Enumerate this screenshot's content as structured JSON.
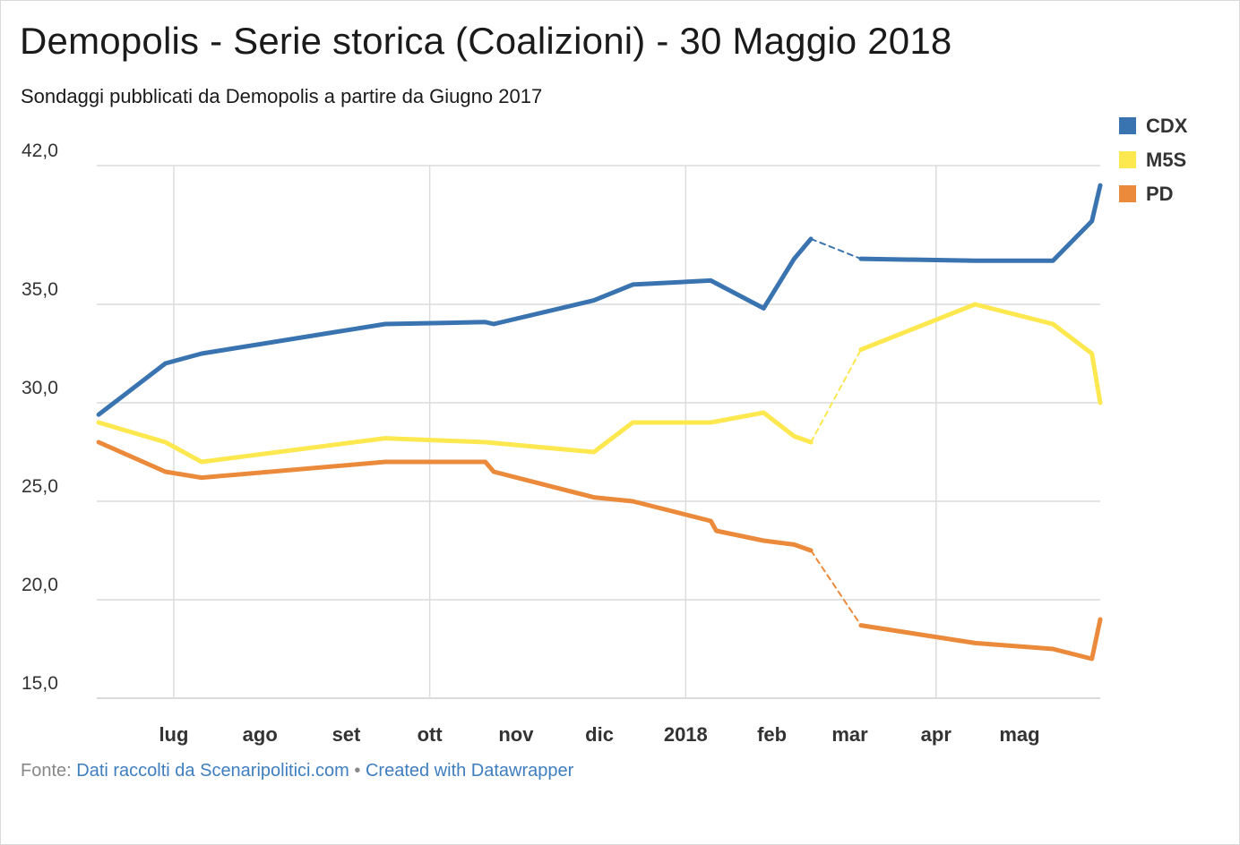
{
  "chart_data": {
    "type": "line",
    "title": "Demopolis - Serie storica (Coalizioni) - 30 Maggio 2018",
    "subtitle": "Sondaggi pubblicati da Demopolis a partire da Giugno 2017",
    "y_ticks": [
      "42,0",
      "35,0",
      "30,0",
      "25,0",
      "20,0",
      "15,0"
    ],
    "y_tick_values": [
      42,
      35,
      30,
      25,
      20,
      15
    ],
    "ylim": [
      15,
      42
    ],
    "x_ticks": [
      "lug",
      "ago",
      "set",
      "ott",
      "nov",
      "dic",
      "2018",
      "feb",
      "mar",
      "apr",
      "mag"
    ],
    "x_tick_dates": [
      "2017-07-01",
      "2017-08-01",
      "2017-09-01",
      "2017-10-01",
      "2017-11-01",
      "2017-12-01",
      "2018-01-01",
      "2018-02-01",
      "2018-03-01",
      "2018-04-01",
      "2018-05-01"
    ],
    "xlim": [
      "2017-06-03",
      "2018-05-30"
    ],
    "gap": [
      "2018-02-15",
      "2018-03-05"
    ],
    "grid": true,
    "legend_position": "top-right",
    "series": [
      {
        "name": "CDX",
        "color": "#3a74b0",
        "points": [
          [
            "2017-06-04",
            29.4
          ],
          [
            "2017-06-28",
            32.0
          ],
          [
            "2017-07-11",
            32.5
          ],
          [
            "2017-09-15",
            34.0
          ],
          [
            "2017-10-21",
            34.1
          ],
          [
            "2017-10-24",
            34.0
          ],
          [
            "2017-11-29",
            35.2
          ],
          [
            "2017-12-13",
            36.0
          ],
          [
            "2018-01-10",
            36.2
          ],
          [
            "2018-01-29",
            34.8
          ],
          [
            "2018-02-09",
            37.3
          ],
          [
            "2018-02-15",
            38.3
          ],
          [
            "2018-03-05",
            37.3
          ],
          [
            "2018-04-15",
            37.2
          ],
          [
            "2018-05-13",
            37.2
          ],
          [
            "2018-05-27",
            39.2
          ],
          [
            "2018-05-30",
            41.0
          ]
        ]
      },
      {
        "name": "M5S",
        "color": "#fde84f",
        "points": [
          [
            "2017-06-04",
            29.0
          ],
          [
            "2017-06-28",
            28.0
          ],
          [
            "2017-07-11",
            27.0
          ],
          [
            "2017-09-15",
            28.2
          ],
          [
            "2017-10-21",
            28.0
          ],
          [
            "2017-11-29",
            27.5
          ],
          [
            "2017-12-13",
            29.0
          ],
          [
            "2018-01-10",
            29.0
          ],
          [
            "2018-01-29",
            29.5
          ],
          [
            "2018-02-09",
            28.3
          ],
          [
            "2018-02-15",
            28.0
          ],
          [
            "2018-03-05",
            32.7
          ],
          [
            "2018-04-15",
            35.0
          ],
          [
            "2018-05-13",
            34.0
          ],
          [
            "2018-05-27",
            32.5
          ],
          [
            "2018-05-30",
            30.0
          ]
        ]
      },
      {
        "name": "PD",
        "color": "#ea8a3a",
        "points": [
          [
            "2017-06-04",
            28.0
          ],
          [
            "2017-06-28",
            26.5
          ],
          [
            "2017-07-11",
            26.2
          ],
          [
            "2017-09-15",
            27.0
          ],
          [
            "2017-10-21",
            27.0
          ],
          [
            "2017-10-24",
            26.5
          ],
          [
            "2017-11-29",
            25.2
          ],
          [
            "2017-12-13",
            25.0
          ],
          [
            "2018-01-10",
            24.0
          ],
          [
            "2018-01-12",
            23.5
          ],
          [
            "2018-01-29",
            23.0
          ],
          [
            "2018-02-09",
            22.8
          ],
          [
            "2018-02-15",
            22.5
          ],
          [
            "2018-03-05",
            18.7
          ],
          [
            "2018-04-15",
            17.8
          ],
          [
            "2018-05-13",
            17.5
          ],
          [
            "2018-05-27",
            17.0
          ],
          [
            "2018-05-30",
            19.0
          ]
        ]
      }
    ]
  },
  "footer": {
    "prefix": "Fonte:",
    "source": "Dati raccolti da Scenaripolitici.com",
    "separator": "•",
    "credit": "Created with Datawrapper"
  }
}
